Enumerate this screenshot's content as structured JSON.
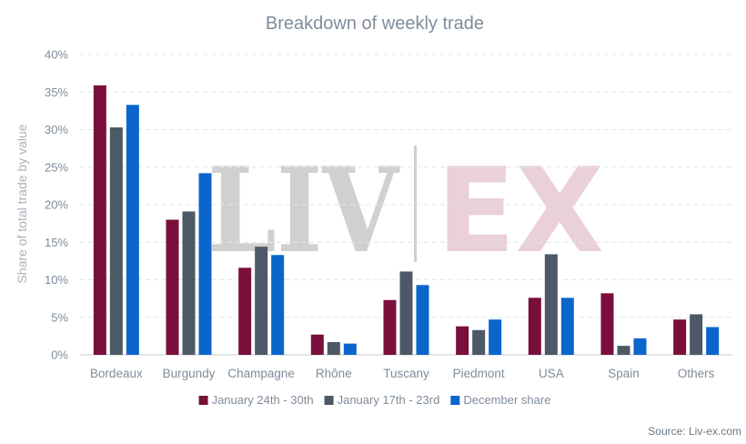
{
  "chart_data": {
    "type": "bar",
    "title": "Breakdown of weekly trade",
    "xlabel": "",
    "ylabel": "Share of total trade by value",
    "ylim": [
      0,
      40
    ],
    "yticks": [
      "0%",
      "5%",
      "10%",
      "15%",
      "20%",
      "25%",
      "30%",
      "35%",
      "40%"
    ],
    "grid": true,
    "legend_position": "bottom",
    "categories": [
      "Bordeaux",
      "Burgundy",
      "Champagne",
      "Rhône",
      "Tuscany",
      "Piedmont",
      "USA",
      "Spain",
      "Others"
    ],
    "series": [
      {
        "name": "January 24th - 30th",
        "color": "#7b0f3b",
        "values": [
          35.9,
          18.0,
          11.6,
          2.7,
          7.3,
          3.8,
          7.6,
          8.2,
          4.7
        ]
      },
      {
        "name": "January 17th - 23rd",
        "color": "#4d5966",
        "values": [
          30.3,
          19.1,
          14.4,
          1.7,
          11.1,
          3.3,
          13.4,
          1.2,
          5.4
        ]
      },
      {
        "name": "December share",
        "color": "#0b66cc",
        "values": [
          33.3,
          24.2,
          13.3,
          1.5,
          9.3,
          4.7,
          7.6,
          2.2,
          3.7
        ]
      }
    ],
    "source": "Source: Liv-ex.com",
    "watermark": {
      "left": "LIV",
      "right": "EX"
    }
  }
}
